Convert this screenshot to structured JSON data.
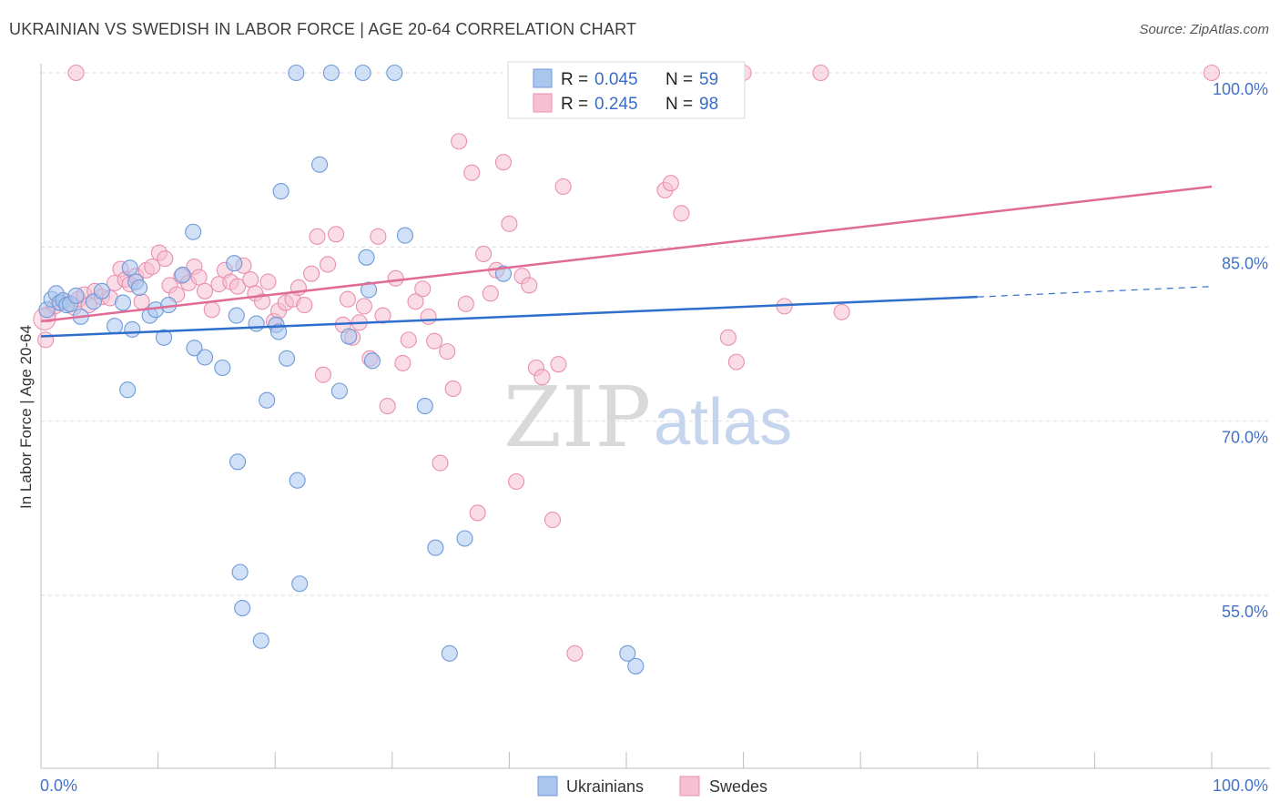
{
  "header": {
    "title": "UKRAINIAN VS SWEDISH IN LABOR FORCE | AGE 20-64 CORRELATION CHART",
    "source": "Source: ZipAtlas.com"
  },
  "legend": {
    "r_label": "R =",
    "n_label": "N =",
    "series": [
      {
        "name": "Ukrainians",
        "r": "0.045",
        "n": "59"
      },
      {
        "name": "Swedes",
        "r": "0.245",
        "n": "98"
      }
    ]
  },
  "watermark": {
    "zip": "ZIP",
    "atlas": "atlas"
  },
  "colors": {
    "ukrainians_fill": "#aac6ef",
    "ukrainians_stroke": "#6f9ad8",
    "ukrainians_line": "#2f6fcc",
    "swedes_fill": "#f6bfd2",
    "swedes_stroke": "#e98fb0",
    "swedes_line": "#e06b96",
    "tick_label": "#4472c4"
  },
  "chart_data": {
    "type": "scatter",
    "title": "UKRAINIAN VS SWEDISH IN LABOR FORCE | AGE 20-64 CORRELATION CHART",
    "xlabel": "",
    "ylabel": "In Labor Force | Age 20-64",
    "xlim": [
      0,
      100
    ],
    "ylim": [
      39,
      102
    ],
    "x_tick_labels": [
      "0.0%",
      "100.0%"
    ],
    "y_ticks": [
      55,
      70,
      85,
      100
    ],
    "y_tick_labels": [
      "55.0%",
      "70.0%",
      "85.0%",
      "100.0%"
    ],
    "grid": true,
    "legend_position": "top-center",
    "series": [
      {
        "name": "Ukrainians",
        "r": 0.045,
        "n": 59,
        "trend": {
          "x": [
            0,
            80
          ],
          "y": [
            77.3,
            80.7
          ],
          "dashed_to": [
            100,
            81.6
          ]
        },
        "points": [
          [
            0.5,
            79.6
          ],
          [
            0.9,
            80.5
          ],
          [
            1.3,
            81.0
          ],
          [
            1.6,
            80.2
          ],
          [
            1.9,
            80.4
          ],
          [
            2.2,
            80.0
          ],
          [
            2.5,
            80.1
          ],
          [
            3.0,
            80.8
          ],
          [
            3.4,
            79.0
          ],
          [
            4.5,
            80.3
          ],
          [
            5.2,
            81.2
          ],
          [
            6.3,
            78.2
          ],
          [
            7.0,
            80.2
          ],
          [
            7.4,
            72.7
          ],
          [
            7.6,
            83.2
          ],
          [
            7.8,
            77.9
          ],
          [
            8.1,
            82.0
          ],
          [
            8.4,
            81.5
          ],
          [
            9.3,
            79.1
          ],
          [
            9.8,
            79.6
          ],
          [
            10.5,
            77.2
          ],
          [
            10.9,
            80.0
          ],
          [
            12.1,
            82.6
          ],
          [
            13.0,
            86.3
          ],
          [
            13.1,
            76.3
          ],
          [
            14.0,
            75.5
          ],
          [
            15.5,
            74.6
          ],
          [
            16.5,
            83.6
          ],
          [
            16.7,
            79.1
          ],
          [
            16.8,
            66.5
          ],
          [
            17.0,
            57.0
          ],
          [
            17.2,
            53.9
          ],
          [
            18.4,
            78.4
          ],
          [
            18.8,
            51.1
          ],
          [
            19.3,
            71.8
          ],
          [
            20.1,
            78.3
          ],
          [
            20.3,
            77.7
          ],
          [
            20.5,
            89.8
          ],
          [
            21.0,
            75.4
          ],
          [
            21.9,
            64.9
          ],
          [
            22.1,
            56.0
          ],
          [
            23.8,
            92.1
          ],
          [
            25.5,
            72.6
          ],
          [
            26.3,
            77.3
          ],
          [
            27.8,
            84.1
          ],
          [
            28.0,
            81.3
          ],
          [
            28.3,
            75.2
          ],
          [
            31.1,
            86.0
          ],
          [
            32.8,
            71.3
          ],
          [
            33.7,
            59.1
          ],
          [
            34.9,
            50.0
          ],
          [
            36.2,
            59.9
          ],
          [
            39.5,
            82.7
          ],
          [
            50.1,
            50.0
          ],
          [
            50.8,
            48.9
          ],
          [
            21.8,
            100.0
          ],
          [
            24.8,
            100.0
          ],
          [
            27.5,
            100.0
          ],
          [
            30.2,
            100.0
          ]
        ]
      },
      {
        "name": "Swedes",
        "r": 0.245,
        "n": 98,
        "trend": {
          "x": [
            0,
            100
          ],
          "y": [
            78.6,
            90.2
          ]
        },
        "points": [
          [
            0.4,
            77.0
          ],
          [
            0.6,
            79.2
          ],
          [
            1.2,
            79.9
          ],
          [
            1.7,
            80.2
          ],
          [
            2.1,
            80.3
          ],
          [
            2.8,
            79.8
          ],
          [
            3.2,
            80.5
          ],
          [
            3.7,
            80.9
          ],
          [
            4.1,
            80.0
          ],
          [
            4.6,
            81.2
          ],
          [
            5.2,
            80.7
          ],
          [
            5.9,
            80.6
          ],
          [
            6.3,
            81.9
          ],
          [
            6.8,
            83.1
          ],
          [
            7.2,
            82.2
          ],
          [
            7.6,
            81.8
          ],
          [
            8.1,
            82.5
          ],
          [
            8.6,
            80.3
          ],
          [
            9.0,
            83.0
          ],
          [
            9.5,
            83.3
          ],
          [
            10.1,
            84.5
          ],
          [
            10.6,
            84.0
          ],
          [
            11.0,
            81.7
          ],
          [
            11.6,
            80.9
          ],
          [
            12.0,
            82.5
          ],
          [
            12.6,
            81.9
          ],
          [
            13.1,
            83.3
          ],
          [
            13.5,
            82.4
          ],
          [
            14.0,
            81.2
          ],
          [
            14.6,
            79.6
          ],
          [
            15.2,
            81.8
          ],
          [
            15.7,
            83.0
          ],
          [
            16.2,
            82.0
          ],
          [
            16.8,
            81.6
          ],
          [
            17.3,
            83.4
          ],
          [
            17.9,
            82.2
          ],
          [
            18.3,
            81.0
          ],
          [
            18.9,
            80.3
          ],
          [
            19.4,
            82.0
          ],
          [
            19.9,
            78.6
          ],
          [
            20.3,
            79.5
          ],
          [
            20.9,
            80.2
          ],
          [
            21.5,
            80.5
          ],
          [
            22.0,
            81.5
          ],
          [
            22.5,
            80.0
          ],
          [
            23.1,
            82.7
          ],
          [
            23.6,
            85.9
          ],
          [
            24.1,
            74.0
          ],
          [
            24.5,
            83.5
          ],
          [
            25.2,
            86.1
          ],
          [
            25.8,
            78.3
          ],
          [
            26.2,
            80.5
          ],
          [
            26.6,
            77.2
          ],
          [
            27.2,
            78.5
          ],
          [
            27.6,
            79.9
          ],
          [
            28.1,
            75.4
          ],
          [
            28.8,
            85.9
          ],
          [
            29.2,
            79.1
          ],
          [
            29.6,
            71.3
          ],
          [
            30.3,
            82.3
          ],
          [
            30.9,
            75.0
          ],
          [
            31.4,
            77.0
          ],
          [
            32.0,
            80.3
          ],
          [
            32.6,
            81.4
          ],
          [
            33.1,
            79.0
          ],
          [
            33.6,
            76.9
          ],
          [
            34.1,
            66.4
          ],
          [
            34.7,
            76.0
          ],
          [
            35.2,
            72.8
          ],
          [
            35.7,
            94.1
          ],
          [
            36.3,
            80.1
          ],
          [
            36.8,
            91.4
          ],
          [
            37.3,
            62.1
          ],
          [
            37.8,
            84.4
          ],
          [
            38.4,
            81.0
          ],
          [
            38.9,
            83.0
          ],
          [
            39.5,
            92.3
          ],
          [
            40.0,
            87.0
          ],
          [
            40.6,
            64.8
          ],
          [
            41.1,
            82.5
          ],
          [
            41.7,
            81.7
          ],
          [
            42.3,
            74.6
          ],
          [
            42.8,
            73.8
          ],
          [
            43.7,
            61.5
          ],
          [
            44.2,
            74.9
          ],
          [
            44.6,
            90.2
          ],
          [
            45.6,
            50.0
          ],
          [
            53.3,
            89.9
          ],
          [
            53.8,
            90.5
          ],
          [
            54.7,
            87.9
          ],
          [
            58.7,
            77.2
          ],
          [
            59.4,
            75.1
          ],
          [
            63.5,
            79.9
          ],
          [
            68.4,
            79.4
          ],
          [
            3.0,
            100.0
          ],
          [
            60.0,
            100.0
          ],
          [
            66.6,
            100.0
          ],
          [
            100.0,
            100.0
          ]
        ]
      }
    ]
  }
}
